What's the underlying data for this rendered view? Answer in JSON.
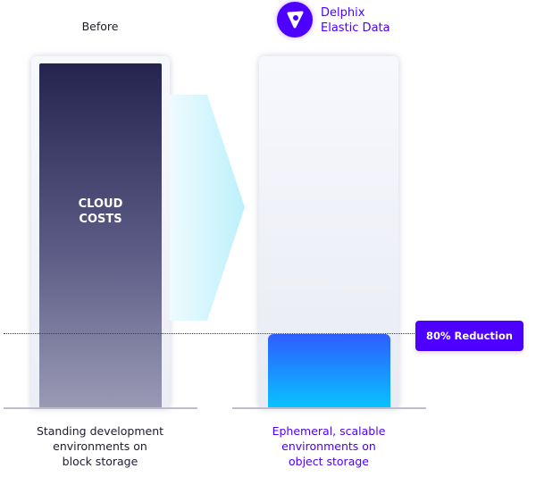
{
  "before": {
    "title": "Before",
    "bar_label_line1": "CLOUD",
    "bar_label_line2": "COSTS",
    "caption": [
      "Standing development",
      "environments on",
      "block storage"
    ]
  },
  "after": {
    "brand_line1": "Delphix",
    "brand_line2": "Elastic Data",
    "caption": [
      "Ephemeral, scalable",
      "environments on",
      "object storage"
    ]
  },
  "reduction": {
    "label": "80% Reduction",
    "percent": 80
  },
  "colors": {
    "accent": "#4d00ff",
    "cloud_top": "#24244f",
    "object_top": "#2d5dff",
    "object_bottom": "#08c3ff"
  }
}
